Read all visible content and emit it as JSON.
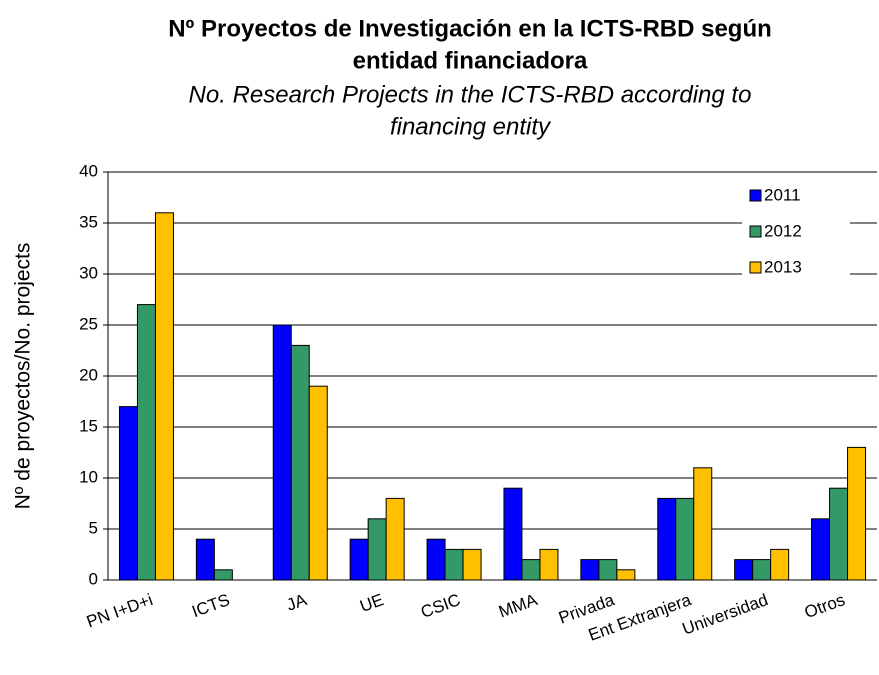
{
  "chart_data": {
    "type": "bar",
    "title": [
      "Nº Proyectos de Investigación en la ICTS-RBD según",
      "entidad financiadora"
    ],
    "subtitle": [
      "No. Research Projects in the ICTS-RBD according to",
      "financing entity"
    ],
    "y_label": "Nº de proyectos/No. projects",
    "categories": [
      "PN I+D+i",
      "ICTS",
      "JA",
      "UE",
      "CSIC",
      "MMA",
      "Privada",
      "Ent Extranjera",
      "Universidad",
      "Otros"
    ],
    "series": [
      {
        "name": "2011",
        "color": "#0000ff",
        "values": [
          17,
          4,
          25,
          4,
          4,
          9,
          2,
          8,
          2,
          6
        ]
      },
      {
        "name": "2012",
        "color": "#339966",
        "values": [
          27,
          1,
          23,
          6,
          3,
          2,
          2,
          8,
          2,
          9
        ]
      },
      {
        "name": "2013",
        "color": "#ffc000",
        "values": [
          36,
          0,
          19,
          8,
          3,
          3,
          1,
          11,
          3,
          13
        ]
      }
    ],
    "ylim": [
      0,
      40
    ],
    "yticks": [
      0,
      5,
      10,
      15,
      20,
      25,
      30,
      35,
      40
    ],
    "grid": true,
    "legend": "top-right"
  }
}
